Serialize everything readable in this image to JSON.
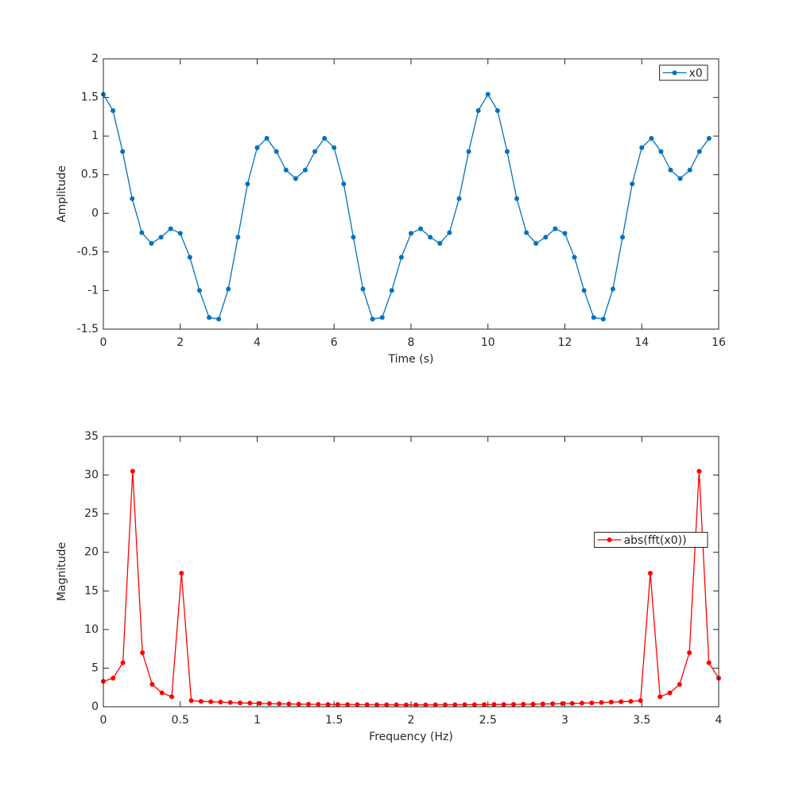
{
  "chart_data": [
    {
      "type": "line",
      "xlabel": "Time (s)",
      "ylabel": "Amplitude",
      "x": [
        0,
        0.25,
        0.5,
        0.75,
        1,
        1.25,
        1.5,
        1.75,
        2,
        2.25,
        2.5,
        2.75,
        3,
        3.25,
        3.5,
        3.75,
        4,
        4.25,
        4.5,
        4.75,
        5,
        5.25,
        5.5,
        5.75,
        6,
        6.25,
        6.5,
        6.75,
        7,
        7.25,
        7.5,
        7.75,
        8,
        8.25,
        8.5,
        8.75,
        9,
        9.25,
        9.5,
        9.75,
        10,
        10.25,
        10.5,
        10.75,
        11,
        11.25,
        11.5,
        11.75,
        12,
        12.25,
        12.5,
        12.75,
        13,
        13.25,
        13.5,
        13.75,
        14,
        14.25,
        14.5,
        14.75,
        15,
        15.25,
        15.5,
        15.75
      ],
      "series": [
        {
          "name": "x0",
          "color": "#0072bd",
          "values": [
            1.54,
            1.33,
            0.8,
            0.19,
            -0.25,
            -0.39,
            -0.31,
            -0.2,
            -0.26,
            -0.57,
            -1.0,
            -1.35,
            -1.37,
            -0.98,
            -0.31,
            0.38,
            0.85,
            0.97,
            0.8,
            0.56,
            0.45,
            0.56,
            0.8,
            0.97,
            0.85,
            0.38,
            -0.31,
            -0.98,
            -1.37,
            -1.35,
            -1.0,
            -0.57,
            -0.26,
            -0.2,
            -0.31,
            -0.39,
            -0.25,
            0.19,
            0.8,
            1.33,
            1.54,
            1.33,
            0.8,
            0.19,
            -0.25,
            -0.39,
            -0.31,
            -0.2,
            -0.26,
            -0.57,
            -1.0,
            -1.35,
            -1.37,
            -0.98,
            -0.31,
            0.38,
            0.85,
            0.97,
            0.8,
            0.56,
            0.45,
            0.56,
            0.8,
            0.97
          ]
        }
      ],
      "xlim": [
        0,
        16
      ],
      "xticks": [
        0,
        2,
        4,
        6,
        8,
        10,
        12,
        14,
        16
      ],
      "ylim": [
        -1.5,
        2
      ],
      "yticks": [
        -1.5,
        -1,
        -0.5,
        0,
        0.5,
        1,
        1.5,
        2
      ],
      "legend": "northeast"
    },
    {
      "type": "line",
      "xlabel": "Frequency (Hz)",
      "ylabel": "Magnitude",
      "x": [
        0,
        0.0635,
        0.127,
        0.1905,
        0.254,
        0.3175,
        0.381,
        0.4444,
        0.5079,
        0.5714,
        0.6349,
        0.6984,
        0.7619,
        0.8254,
        0.8889,
        0.9524,
        1.0159,
        1.0794,
        1.1429,
        1.2063,
        1.2698,
        1.3333,
        1.3968,
        1.4603,
        1.5238,
        1.5873,
        1.6508,
        1.7143,
        1.7778,
        1.8413,
        1.9048,
        1.9683,
        2.0317,
        2.0952,
        2.1587,
        2.2222,
        2.2857,
        2.3492,
        2.4127,
        2.4762,
        2.5397,
        2.6032,
        2.6667,
        2.7302,
        2.7937,
        2.8571,
        2.9206,
        2.9841,
        3.0476,
        3.1111,
        3.1746,
        3.2381,
        3.3016,
        3.3651,
        3.4286,
        3.4921,
        3.5556,
        3.619,
        3.6825,
        3.746,
        3.8095,
        3.873,
        3.9365,
        4
      ],
      "series": [
        {
          "name": "abs(fft(x0))",
          "color": "#ff0000",
          "values": [
            3.3,
            3.7,
            5.7,
            30.5,
            7.0,
            2.9,
            1.8,
            1.3,
            17.3,
            0.8,
            0.7,
            0.65,
            0.6,
            0.55,
            0.5,
            0.47,
            0.44,
            0.41,
            0.38,
            0.36,
            0.34,
            0.32,
            0.31,
            0.3,
            0.29,
            0.28,
            0.27,
            0.27,
            0.26,
            0.26,
            0.26,
            0.25,
            0.25,
            0.25,
            0.26,
            0.26,
            0.26,
            0.27,
            0.27,
            0.28,
            0.29,
            0.3,
            0.31,
            0.32,
            0.34,
            0.36,
            0.38,
            0.41,
            0.44,
            0.47,
            0.5,
            0.55,
            0.6,
            0.65,
            0.7,
            0.8,
            17.3,
            1.3,
            1.8,
            2.9,
            7.0,
            30.5,
            5.7,
            3.7
          ]
        }
      ],
      "xlim": [
        0,
        4
      ],
      "xticks": [
        0,
        0.5,
        1,
        1.5,
        2,
        2.5,
        3,
        3.5,
        4
      ],
      "ylim": [
        0,
        35
      ],
      "yticks": [
        0,
        5,
        10,
        15,
        20,
        25,
        30,
        35
      ],
      "legend": "east"
    }
  ]
}
